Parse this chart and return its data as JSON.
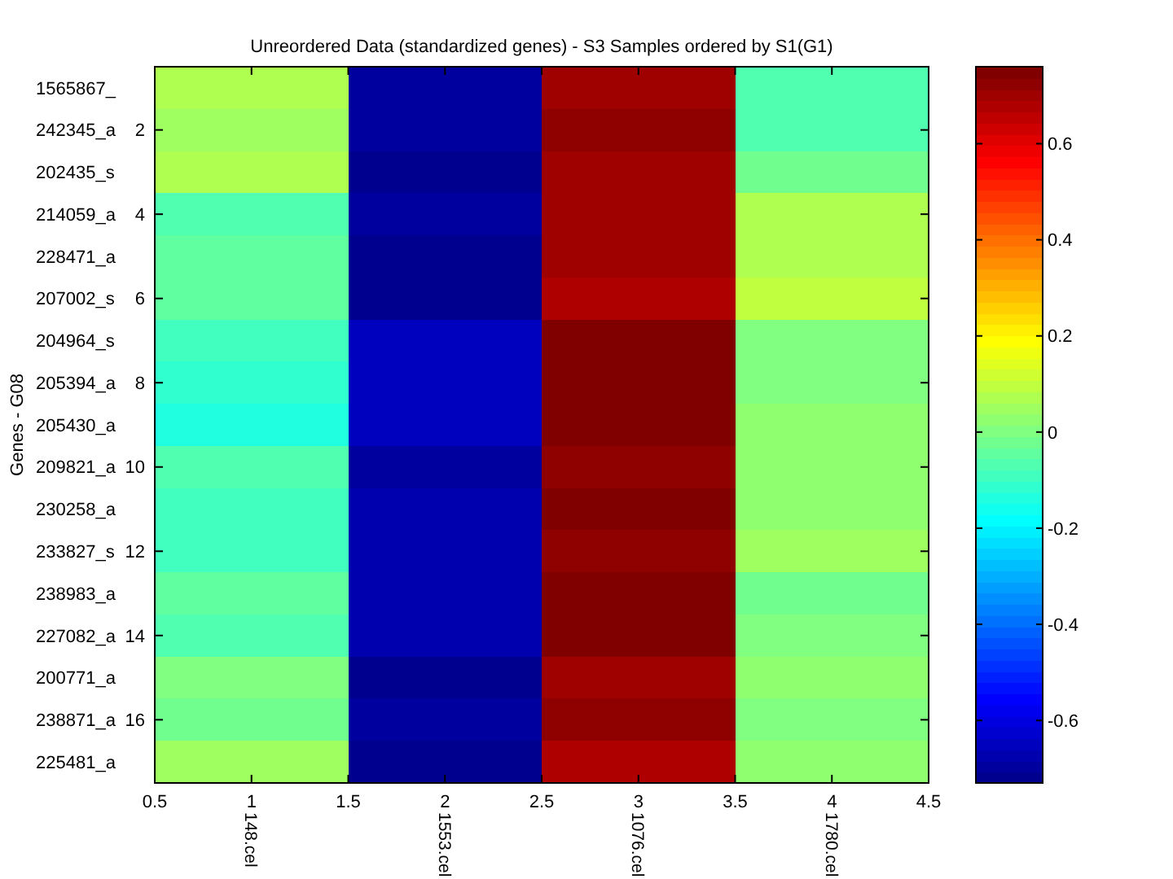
{
  "chart_data": {
    "type": "heatmap",
    "title": "Unreordered Data (standardized genes) - S3 Samples ordered by S1(G1)",
    "ylabel": "Genes - G08",
    "categories": [
      "148.cel",
      "1553.cel",
      "1076.cel",
      "1780.cel"
    ],
    "y_categories": [
      "1565867_",
      "242345_a",
      "202435_s",
      "214059_a",
      "228471_a",
      "207002_s",
      "204964_s",
      "205394_a",
      "205430_a",
      "209821_a",
      "230258_a",
      "233827_s",
      "238983_a",
      "227082_a",
      "200771_a",
      "238871_a",
      "225481_a"
    ],
    "cells": [
      [
        0.07,
        -0.7,
        0.7,
        -0.07
      ],
      [
        0.05,
        -0.7,
        0.72,
        -0.07
      ],
      [
        0.07,
        -0.72,
        0.7,
        -0.02
      ],
      [
        -0.07,
        -0.7,
        0.7,
        0.07
      ],
      [
        -0.04,
        -0.72,
        0.7,
        0.07
      ],
      [
        -0.04,
        -0.72,
        0.68,
        0.1
      ],
      [
        -0.09,
        -0.65,
        0.75,
        0.0
      ],
      [
        -0.11,
        -0.65,
        0.75,
        0.0
      ],
      [
        -0.14,
        -0.65,
        0.75,
        0.03
      ],
      [
        -0.07,
        -0.7,
        0.72,
        0.03
      ],
      [
        -0.09,
        -0.67,
        0.75,
        0.03
      ],
      [
        -0.09,
        -0.67,
        0.72,
        0.05
      ],
      [
        -0.04,
        -0.67,
        0.75,
        -0.02
      ],
      [
        -0.07,
        -0.67,
        0.75,
        0.0
      ],
      [
        0.0,
        -0.72,
        0.7,
        0.03
      ],
      [
        -0.02,
        -0.7,
        0.72,
        0.0
      ],
      [
        0.05,
        -0.72,
        0.68,
        0.03
      ]
    ],
    "x2lim": [
      0.5,
      4.5
    ],
    "x2ticks": [
      0.5,
      1,
      1.5,
      2,
      2.5,
      3,
      3.5,
      4,
      4.5
    ],
    "y2lim": [
      17.5,
      0.5
    ],
    "y2ticks": [
      2,
      4,
      6,
      8,
      10,
      12,
      14,
      16
    ],
    "clim": [
      -0.73,
      0.76
    ],
    "cticks": [
      -0.6,
      -0.4,
      -0.2,
      0,
      0.2,
      0.4,
      0.6
    ]
  }
}
